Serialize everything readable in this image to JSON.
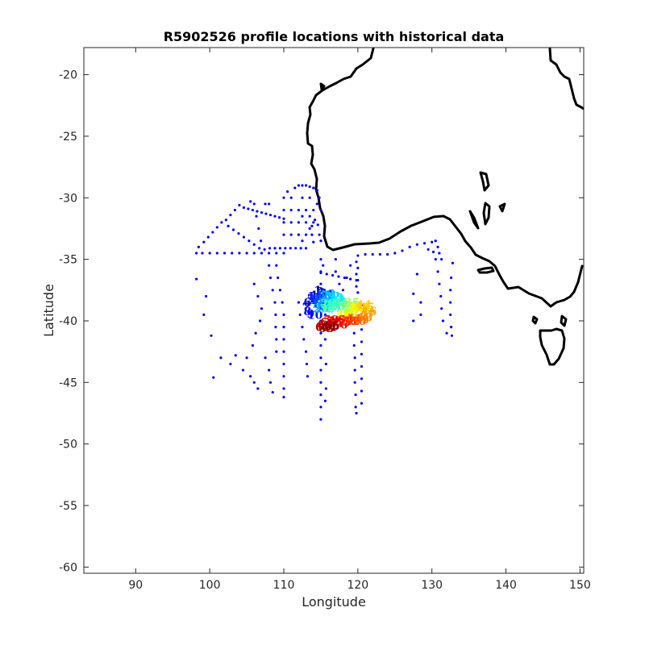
{
  "chart_data": {
    "type": "scatter",
    "title": "R5902526 profile locations with historical data",
    "xlabel": "Longitude",
    "ylabel": "Latitude",
    "xlim": [
      83,
      150.5
    ],
    "ylim": [
      -60.5,
      -17.8
    ],
    "xticks": [
      90,
      100,
      110,
      120,
      130,
      140,
      150
    ],
    "yticks": [
      -20,
      -25,
      -30,
      -35,
      -40,
      -45,
      -50,
      -55,
      -60
    ],
    "grid": false,
    "colors": {
      "historical": "#0000ff",
      "coastline": "#000000",
      "profile_colormap": [
        "#00008f",
        "#0000ff",
        "#0080ff",
        "#00ffff",
        "#80ff80",
        "#ffff00",
        "#ff8000",
        "#ff0000",
        "#800000"
      ]
    },
    "series": [
      {
        "marker": "dot",
        "color": "#0000ff",
        "points": [
          [
            98.2,
            -34.5
          ],
          [
            99.0,
            -34.5
          ],
          [
            100.0,
            -34.5
          ],
          [
            101.0,
            -34.5
          ],
          [
            102.0,
            -34.5
          ],
          [
            103.0,
            -34.5
          ],
          [
            104.0,
            -34.5
          ],
          [
            105.0,
            -34.5
          ],
          [
            106.0,
            -34.5
          ],
          [
            107.0,
            -34.5
          ],
          [
            108.0,
            -34.5
          ],
          [
            109.0,
            -34.5
          ],
          [
            110.0,
            -34.5
          ],
          [
            98.5,
            -34.0
          ],
          [
            99.2,
            -33.6
          ],
          [
            99.8,
            -33.2
          ],
          [
            100.4,
            -32.8
          ],
          [
            101.0,
            -32.4
          ],
          [
            101.6,
            -32.0
          ],
          [
            102.2,
            -31.8
          ],
          [
            102.8,
            -31.4
          ],
          [
            103.4,
            -31.0
          ],
          [
            104.0,
            -30.6
          ],
          [
            104.6,
            -30.8
          ],
          [
            105.2,
            -30.9
          ],
          [
            105.8,
            -31.0
          ],
          [
            106.4,
            -31.1
          ],
          [
            107.0,
            -31.2
          ],
          [
            107.6,
            -31.3
          ],
          [
            108.2,
            -31.4
          ],
          [
            108.8,
            -31.5
          ],
          [
            109.4,
            -31.6
          ],
          [
            110.0,
            -31.7
          ],
          [
            102.5,
            -32.3
          ],
          [
            103.2,
            -32.6
          ],
          [
            103.9,
            -32.9
          ],
          [
            104.6,
            -33.2
          ],
          [
            105.3,
            -33.5
          ],
          [
            106.0,
            -33.8
          ],
          [
            106.7,
            -34.1
          ],
          [
            107.4,
            -34.2
          ],
          [
            108.1,
            -34.1
          ],
          [
            108.8,
            -34.1
          ],
          [
            109.5,
            -34.1
          ],
          [
            110.2,
            -34.1
          ],
          [
            110.9,
            -34.1
          ],
          [
            111.6,
            -34.1
          ],
          [
            112.3,
            -34.1
          ],
          [
            113.0,
            -34.1
          ],
          [
            106.0,
            -30.5
          ],
          [
            106.3,
            -31.5
          ],
          [
            106.6,
            -32.5
          ],
          [
            106.9,
            -33.5
          ],
          [
            105.5,
            -30.3
          ],
          [
            107.5,
            -30.5
          ],
          [
            108.0,
            -30.5
          ],
          [
            110.0,
            -30.0
          ],
          [
            110.5,
            -29.5
          ],
          [
            111.0,
            -30.0
          ],
          [
            111.5,
            -29.2
          ],
          [
            112.0,
            -29.0
          ],
          [
            112.5,
            -29.0
          ],
          [
            113.0,
            -29.0
          ],
          [
            113.5,
            -29.1
          ],
          [
            114.0,
            -29.2
          ],
          [
            114.5,
            -29.4
          ],
          [
            110.0,
            -31.0
          ],
          [
            111.0,
            -31.0
          ],
          [
            112.0,
            -31.0
          ],
          [
            113.0,
            -31.0
          ],
          [
            114.0,
            -31.0
          ],
          [
            114.5,
            -30.5
          ],
          [
            110.0,
            -32.0
          ],
          [
            111.0,
            -32.0
          ],
          [
            112.0,
            -32.0
          ],
          [
            113.0,
            -32.0
          ],
          [
            113.5,
            -32.5
          ],
          [
            114.0,
            -32.0
          ],
          [
            110.0,
            -33.0
          ],
          [
            111.0,
            -33.0
          ],
          [
            112.0,
            -33.0
          ],
          [
            113.0,
            -33.0
          ],
          [
            113.8,
            -33.0
          ],
          [
            114.0,
            -33.6
          ],
          [
            112.5,
            -30.0
          ],
          [
            112.5,
            -31.5
          ],
          [
            112.5,
            -33.5
          ],
          [
            113.5,
            -30.0
          ],
          [
            113.5,
            -31.5
          ],
          [
            113.8,
            -32.3
          ],
          [
            114.2,
            -31.8
          ],
          [
            114.6,
            -32.2
          ],
          [
            114.8,
            -33.0
          ],
          [
            115.0,
            -33.5
          ],
          [
            114.8,
            -30.0
          ],
          [
            115.0,
            -31.0
          ],
          [
            106.0,
            -37.0
          ],
          [
            106.5,
            -38.0
          ],
          [
            107.0,
            -39.0
          ],
          [
            106.8,
            -40.0
          ],
          [
            106.2,
            -41.0
          ],
          [
            105.8,
            -42.0
          ],
          [
            105.0,
            -43.0
          ],
          [
            104.5,
            -44.0
          ],
          [
            105.5,
            -44.5
          ],
          [
            106.0,
            -45.0
          ],
          [
            106.5,
            -45.5
          ],
          [
            107.5,
            -43.0
          ],
          [
            108.0,
            -44.0
          ],
          [
            108.2,
            -45.0
          ],
          [
            108.5,
            -45.8
          ],
          [
            103.5,
            -42.8
          ],
          [
            102.8,
            -43.5
          ],
          [
            101.5,
            -43.0
          ],
          [
            100.5,
            -44.6
          ],
          [
            99.5,
            -38.0
          ],
          [
            100.2,
            -41.2
          ],
          [
            99.2,
            -39.5
          ],
          [
            98.2,
            -36.6
          ],
          [
            109.0,
            -35.5
          ],
          [
            109.2,
            -36.5
          ],
          [
            109.5,
            -37.5
          ],
          [
            109.8,
            -38.5
          ],
          [
            110.0,
            -39.5
          ],
          [
            110.0,
            -40.5
          ],
          [
            110.0,
            -41.5
          ],
          [
            110.0,
            -42.5
          ],
          [
            110.0,
            -43.5
          ],
          [
            110.0,
            -44.5
          ],
          [
            110.0,
            -45.5
          ],
          [
            110.0,
            -46.2
          ],
          [
            108.0,
            -35.5
          ],
          [
            108.2,
            -36.5
          ],
          [
            108.5,
            -37.5
          ],
          [
            108.8,
            -38.5
          ],
          [
            108.9,
            -39.5
          ],
          [
            108.9,
            -40.5
          ],
          [
            109.0,
            -41.5
          ],
          [
            109.0,
            -42.5
          ],
          [
            112.0,
            -38.5
          ],
          [
            112.2,
            -39.5
          ],
          [
            112.5,
            -40.5
          ],
          [
            112.7,
            -41.5
          ],
          [
            113.0,
            -42.5
          ],
          [
            113.1,
            -43.5
          ],
          [
            113.2,
            -44.5
          ],
          [
            115.0,
            -35.0
          ],
          [
            115.0,
            -36.0
          ],
          [
            115.0,
            -37.0
          ],
          [
            115.0,
            -38.0
          ],
          [
            115.0,
            -39.0
          ],
          [
            115.0,
            -40.0
          ],
          [
            115.0,
            -41.0
          ],
          [
            115.0,
            -42.0
          ],
          [
            115.0,
            -43.0
          ],
          [
            115.0,
            -44.0
          ],
          [
            115.0,
            -45.0
          ],
          [
            115.0,
            -46.0
          ],
          [
            115.0,
            -47.0
          ],
          [
            115.0,
            -48.0
          ],
          [
            115.3,
            -35.5
          ],
          [
            115.5,
            -37.5
          ],
          [
            115.6,
            -39.5
          ],
          [
            115.6,
            -41.5
          ],
          [
            115.7,
            -43.5
          ],
          [
            115.7,
            -45.5
          ],
          [
            115.6,
            -46.5
          ],
          [
            120.0,
            -34.7
          ],
          [
            120.0,
            -35.7
          ],
          [
            120.0,
            -36.7
          ],
          [
            120.0,
            -37.7
          ],
          [
            120.5,
            -38.7
          ],
          [
            120.5,
            -39.7
          ],
          [
            120.5,
            -40.7
          ],
          [
            120.5,
            -41.7
          ],
          [
            120.5,
            -42.7
          ],
          [
            120.5,
            -43.7
          ],
          [
            120.5,
            -44.7
          ],
          [
            120.5,
            -45.7
          ],
          [
            120.5,
            -46.7
          ],
          [
            119.8,
            -35.2
          ],
          [
            119.8,
            -36.2
          ],
          [
            119.8,
            -37.2
          ],
          [
            119.5,
            -41.0
          ],
          [
            119.5,
            -42.0
          ],
          [
            119.6,
            -43.0
          ],
          [
            119.6,
            -44.0
          ],
          [
            119.6,
            -45.0
          ],
          [
            119.7,
            -46.0
          ],
          [
            119.7,
            -47.0
          ],
          [
            119.8,
            -47.5
          ],
          [
            115.0,
            -36.1
          ],
          [
            115.8,
            -36.2
          ],
          [
            116.6,
            -36.3
          ],
          [
            117.4,
            -36.4
          ],
          [
            118.2,
            -36.5
          ],
          [
            119.0,
            -36.6
          ],
          [
            119.8,
            -36.7
          ],
          [
            117.0,
            -35.0
          ],
          [
            117.0,
            -36.0
          ],
          [
            117.5,
            -37.0
          ],
          [
            118.0,
            -37.5
          ],
          [
            118.5,
            -36.5
          ],
          [
            119.0,
            -35.5
          ],
          [
            116.3,
            -37.6
          ],
          [
            117.3,
            -37.8
          ],
          [
            121.0,
            -34.6
          ],
          [
            122.0,
            -34.6
          ],
          [
            123.0,
            -34.6
          ],
          [
            124.0,
            -34.6
          ],
          [
            125.0,
            -34.5
          ],
          [
            126.0,
            -34.3
          ],
          [
            127.0,
            -34.0
          ],
          [
            128.0,
            -33.8
          ],
          [
            129.0,
            -33.7
          ],
          [
            130.0,
            -33.6
          ],
          [
            128.0,
            -36.2
          ],
          [
            127.5,
            -37.8
          ],
          [
            128.5,
            -38.5
          ],
          [
            128.5,
            -39.5
          ],
          [
            127.5,
            -40.0
          ],
          [
            130.5,
            -33.5
          ],
          [
            130.8,
            -34.0
          ],
          [
            131.0,
            -34.5
          ],
          [
            131.3,
            -35.0
          ],
          [
            130.5,
            -35.0
          ],
          [
            130.8,
            -36.0
          ],
          [
            131.0,
            -37.0
          ],
          [
            131.2,
            -38.0
          ],
          [
            131.3,
            -39.0
          ],
          [
            131.5,
            -40.0
          ],
          [
            132.0,
            -41.0
          ],
          [
            132.8,
            -35.3
          ],
          [
            132.6,
            -36.5
          ],
          [
            132.5,
            -37.5
          ],
          [
            132.5,
            -38.5
          ],
          [
            132.5,
            -39.5
          ],
          [
            132.6,
            -40.5
          ],
          [
            132.7,
            -41.2
          ],
          [
            129.5,
            -34.2
          ],
          [
            130.2,
            -34.4
          ]
        ]
      },
      {
        "marker": "profile-number",
        "colormap": "jet",
        "points": [
          [
            114.6,
            -37.5
          ],
          [
            114.9,
            -37.6
          ],
          [
            115.2,
            -37.7
          ],
          [
            114.0,
            -37.9
          ],
          [
            113.6,
            -38.2
          ],
          [
            113.2,
            -38.5
          ],
          [
            113.0,
            -38.9
          ],
          [
            113.2,
            -39.2
          ],
          [
            113.6,
            -39.4
          ],
          [
            114.2,
            -39.5
          ],
          [
            114.2,
            -38.0
          ],
          [
            114.5,
            -38.3
          ],
          [
            114.8,
            -38.6
          ],
          [
            115.0,
            -38.2
          ],
          [
            115.4,
            -37.9
          ],
          [
            115.8,
            -37.8
          ],
          [
            116.0,
            -38.2
          ],
          [
            115.6,
            -38.5
          ],
          [
            115.3,
            -38.8
          ],
          [
            115.0,
            -39.0
          ],
          [
            116.2,
            -37.9
          ],
          [
            116.6,
            -38.0
          ],
          [
            117.0,
            -38.1
          ],
          [
            117.3,
            -38.3
          ],
          [
            117.6,
            -38.5
          ],
          [
            117.2,
            -38.8
          ],
          [
            116.8,
            -39.0
          ],
          [
            116.4,
            -38.7
          ],
          [
            116.0,
            -38.6
          ],
          [
            115.9,
            -39.0
          ],
          [
            117.8,
            -38.6
          ],
          [
            118.2,
            -38.8
          ],
          [
            118.6,
            -39.0
          ],
          [
            118.9,
            -38.7
          ],
          [
            119.2,
            -38.5
          ],
          [
            119.5,
            -38.8
          ],
          [
            119.3,
            -39.2
          ],
          [
            118.9,
            -39.4
          ],
          [
            118.5,
            -39.6
          ],
          [
            118.1,
            -39.5
          ],
          [
            119.8,
            -38.9
          ],
          [
            120.2,
            -39.0
          ],
          [
            120.5,
            -38.9
          ],
          [
            120.8,
            -38.7
          ],
          [
            121.2,
            -38.9
          ],
          [
            121.5,
            -39.2
          ],
          [
            121.3,
            -39.5
          ],
          [
            120.9,
            -39.7
          ],
          [
            120.5,
            -39.9
          ],
          [
            120.1,
            -40.0
          ],
          [
            119.6,
            -39.8
          ],
          [
            119.2,
            -40.0
          ],
          [
            118.8,
            -40.0
          ],
          [
            118.4,
            -39.9
          ],
          [
            118.0,
            -40.1
          ],
          [
            117.6,
            -40.3
          ],
          [
            117.2,
            -40.2
          ],
          [
            116.8,
            -40.0
          ],
          [
            116.4,
            -39.9
          ],
          [
            116.0,
            -40.1
          ],
          [
            115.6,
            -40.3
          ],
          [
            115.3,
            -40.5
          ],
          [
            115.7,
            -40.6
          ],
          [
            116.1,
            -40.5
          ],
          [
            116.5,
            -40.4
          ]
        ]
      }
    ]
  }
}
